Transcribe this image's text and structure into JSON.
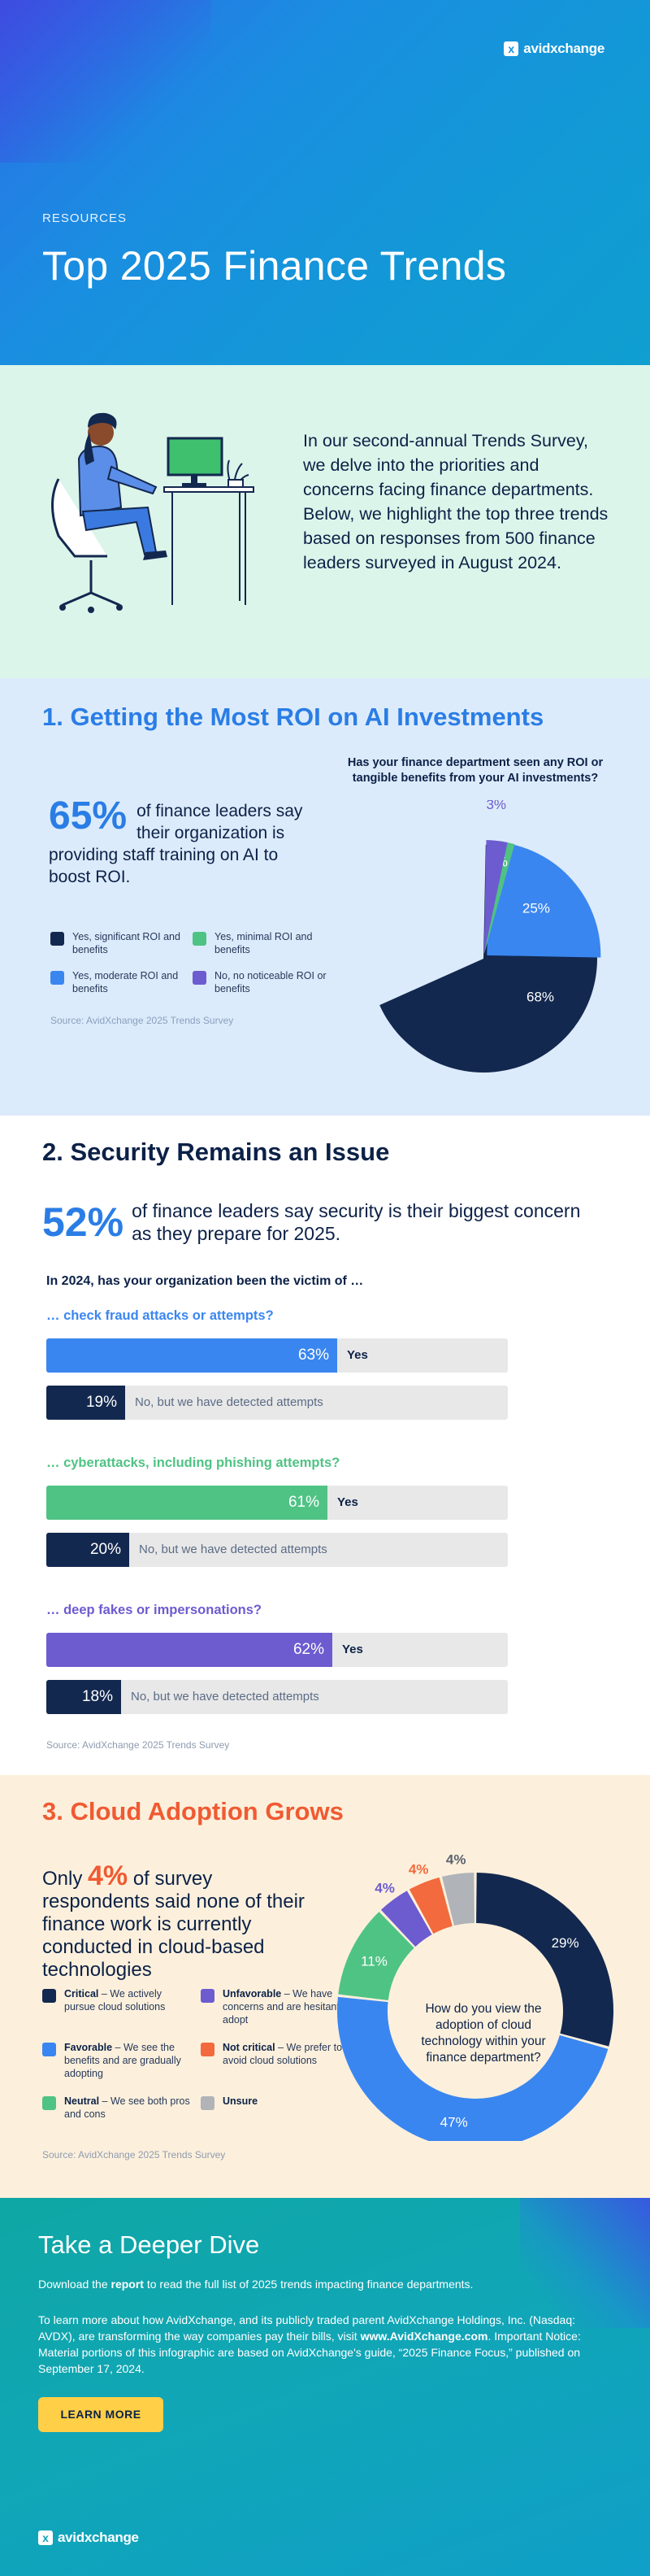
{
  "brand": {
    "logo_text": "avidxchange",
    "logo_mark": "x"
  },
  "hero": {
    "eyebrow": "RESOURCES",
    "title": "Top 2025 Finance Trends"
  },
  "intro": {
    "text": "In our second-annual Trends Survey, we delve into the priorities and concerns facing finance departments. Below, we highlight the top three trends based on responses from 500 finance leaders surveyed in August 2024."
  },
  "section1": {
    "title": "1.   Getting the Most ROI on AI Investments",
    "stat_value": "65%",
    "stat_text": "of finance leaders say their organization is providing staff training on AI to boost ROI.",
    "source": "Source: AvidXchange 2025 Trends Survey",
    "chart_data": {
      "type": "pie",
      "title": "Has your finance department seen any ROI or tangible benefits from your AI investments?",
      "slices": [
        {
          "label": "Yes, significant ROI and benefits",
          "value": 68,
          "color": "#13284f"
        },
        {
          "label": "Yes, moderate ROI and benefits",
          "value": 25,
          "color": "#3a86f0"
        },
        {
          "label": "Yes, minimal ROI and benefits",
          "value": 4,
          "color": "#4fc384"
        },
        {
          "label": "No, no noticeable ROI or benefits",
          "value": 3,
          "color": "#6d5bd0"
        }
      ]
    },
    "legend": [
      {
        "label": "Yes, significant ROI and benefits",
        "color": "#13284f"
      },
      {
        "label": "Yes, minimal ROI and benefits",
        "color": "#4fc384"
      },
      {
        "label": "Yes, moderate ROI and benefits",
        "color": "#3a86f0"
      },
      {
        "label": "No, no noticeable ROI or benefits",
        "color": "#6d5bd0"
      }
    ]
  },
  "section2": {
    "title": "2.   Security Remains an Issue",
    "stat_value": "52%",
    "stat_text": "of finance leaders say security is their biggest concern as they prepare for 2025.",
    "question": "In 2024, has your organization been the victim of …",
    "source": "Source: AvidXchange 2025 Trends Survey",
    "chart_data": {
      "type": "bar",
      "groups": [
        {
          "name": "… check fraud attacks or attempts?",
          "color": "#3a86f0",
          "bars": [
            {
              "label": "Yes",
              "value": 63
            },
            {
              "label": "No, but we have detected attempts",
              "value": 19
            }
          ]
        },
        {
          "name": "… cyberattacks, including phishing attempts?",
          "color": "#4fc384",
          "bars": [
            {
              "label": "Yes",
              "value": 61
            },
            {
              "label": "No, but we have detected attempts",
              "value": 20
            }
          ]
        },
        {
          "name": "… deep fakes or impersonations?",
          "color": "#6d5bd0",
          "bars": [
            {
              "label": "Yes",
              "value": 62
            },
            {
              "label": "No, but we have detected attempts",
              "value": 18
            }
          ]
        }
      ]
    }
  },
  "section3": {
    "title": "3.  Cloud Adoption Grows",
    "stat_pre": "Only ",
    "stat_value": "4%",
    "stat_text": " of survey respondents said none of their finance work is currently conducted in cloud-based technologies",
    "source": "Source: AvidXchange 2025 Trends Survey",
    "chart_data": {
      "type": "pie",
      "title": "How do you view the adoption of cloud technology within your finance department?",
      "slices": [
        {
          "label": "Critical",
          "value": 29,
          "color": "#13284f"
        },
        {
          "label": "Favorable",
          "value": 47,
          "color": "#3a86f0"
        },
        {
          "label": "Neutral",
          "value": 11,
          "color": "#4fc384"
        },
        {
          "label": "Unfavorable",
          "value": 4,
          "color": "#6d5bd0"
        },
        {
          "label": "Not critical",
          "value": 4,
          "color": "#f26a3d"
        },
        {
          "label": "Unsure",
          "value": 4,
          "color": "#b0b3b8"
        }
      ]
    },
    "legend": [
      {
        "term": "Critical",
        "desc": " – We actively pursue cloud solutions",
        "color": "#13284f"
      },
      {
        "term": "Unfavorable",
        "desc": " – We have concerns and are hesitant to adopt",
        "color": "#6d5bd0"
      },
      {
        "term": "Favorable",
        "desc": " – We see the benefits and are gradually adopting",
        "color": "#3a86f0"
      },
      {
        "term": "Not critical",
        "desc": " – We prefer to avoid cloud solutions",
        "color": "#f26a3d"
      },
      {
        "term": "Neutral",
        "desc": " – We see both pros and cons",
        "color": "#4fc384"
      },
      {
        "term": "Unsure",
        "desc": "",
        "color": "#b0b3b8"
      }
    ]
  },
  "footer": {
    "title": "Take a Deeper Dive",
    "p1_pre": "Download the ",
    "p1_link": "report",
    "p1_post": " to read the full list of 2025 trends impacting finance departments.",
    "p2_pre": "To learn more about how AvidXchange, and its publicly traded parent AvidXchange Holdings, Inc. (Nasdaq: AVDX), are transforming the way companies pay their bills, visit ",
    "p2_link": "www.AvidXchange.com",
    "p2_post": ". Important Notice: Material portions of this infographic are based on AvidXchange's guide, “2025 Finance Focus,” published on September 17, 2024.",
    "button": "LEARN MORE"
  }
}
